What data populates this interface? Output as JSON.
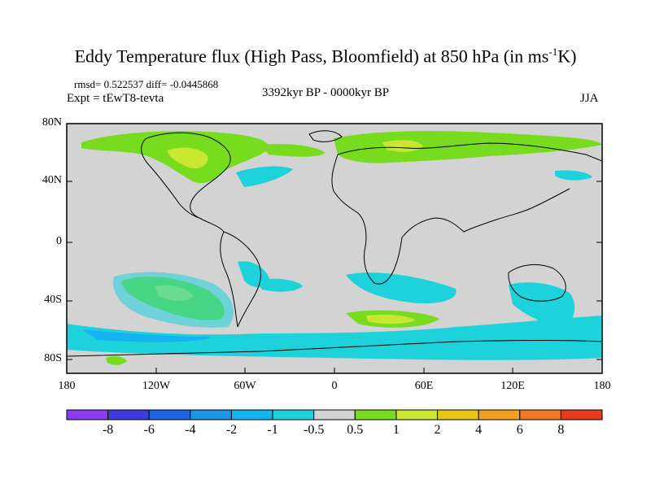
{
  "title": {
    "main": "Eddy Temperature flux (High Pass, Bloomfield) at 850 hPa (in ms",
    "sup": "-1",
    "tail": "K)"
  },
  "stats": "rmsd= 0.522537 diff= -0.0445868",
  "experiment": "Expt = tEwT8-tevta",
  "period": "3392kyr BP - 0000kyr BP",
  "season": "JJA",
  "map": {
    "lat_ticks": [
      "80N",
      "40N",
      "0",
      "40S",
      "80S"
    ],
    "lon_ticks": [
      "180",
      "120W",
      "60W",
      "0",
      "60E",
      "120E",
      "180"
    ],
    "background_color": "#d3d3d3"
  },
  "colorbar": {
    "labels": [
      "-8",
      "-6",
      "-4",
      "-2",
      "-1",
      "-0.5",
      "0.5",
      "1",
      "2",
      "4",
      "6",
      "8"
    ],
    "colors": [
      "#8c3cf0",
      "#3c3cdc",
      "#1e64e6",
      "#1e96e6",
      "#14b4f0",
      "#1ed2dc",
      "#d3d3d3",
      "#78dc1e",
      "#c8e632",
      "#e6c814",
      "#f0a01e",
      "#f07828",
      "#e63c1e"
    ]
  }
}
